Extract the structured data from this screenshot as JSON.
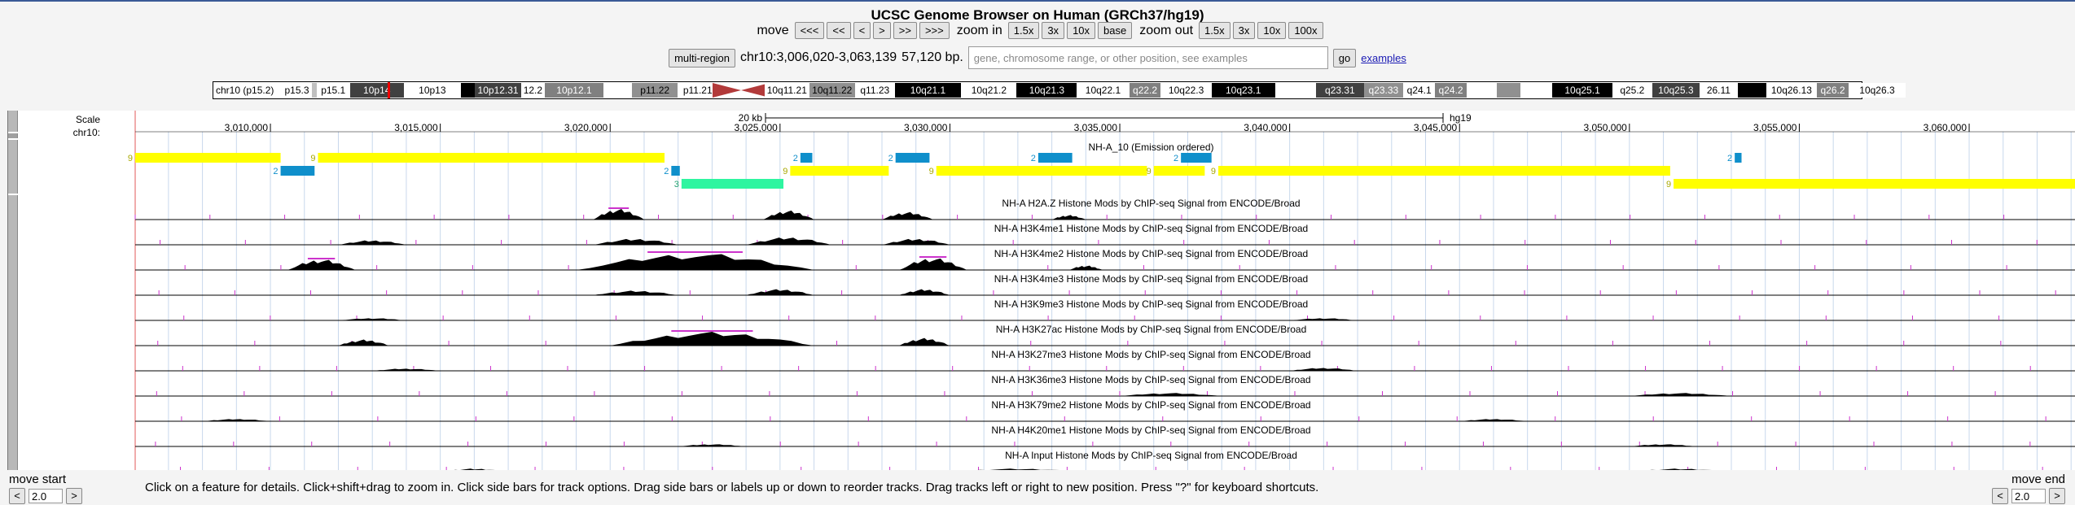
{
  "title": "UCSC Genome Browser on Human (GRCh37/hg19)",
  "nav": {
    "move_label": "move",
    "move_buttons": [
      "<<<",
      "<<",
      "<",
      ">",
      ">>",
      ">>>"
    ],
    "zoom_in_label": "zoom in",
    "zoom_in_buttons": [
      "1.5x",
      "3x",
      "10x",
      "base"
    ],
    "zoom_out_label": "zoom out",
    "zoom_out_buttons": [
      "1.5x",
      "3x",
      "10x",
      "100x"
    ]
  },
  "position": {
    "multi_region_label": "multi-region",
    "coords": "chr10:3,006,020-3,063,139",
    "size": "57,120 bp.",
    "search_placeholder": "gene, chromosome range, or other position, see examples",
    "go_label": "go",
    "examples_label": "examples"
  },
  "ideogram": {
    "chrom_label": "chr10 (p15.2)",
    "bands": [
      {
        "name": "p15.3",
        "shade": "#ffffff",
        "text": "#000"
      },
      {
        "name": "",
        "shade": "#c0c0c0",
        "text": "#000"
      },
      {
        "name": "p15.1",
        "shade": "#ffffff",
        "text": "#000"
      },
      {
        "name": "10p14",
        "shade": "#404040",
        "text": "#fff"
      },
      {
        "name": "10p13",
        "shade": "#ffffff",
        "text": "#000"
      },
      {
        "name": "",
        "shade": "#000000",
        "text": "#fff"
      },
      {
        "name": "10p12.31",
        "shade": "#404040",
        "text": "#fff"
      },
      {
        "name": "12.2",
        "shade": "#ffffff",
        "text": "#000"
      },
      {
        "name": "10p12.1",
        "shade": "#808080",
        "text": "#fff"
      },
      {
        "name": "",
        "shade": "#ffffff",
        "text": "#000"
      },
      {
        "name": "p11.22",
        "shade": "#909090",
        "text": "#000"
      },
      {
        "name": "p11.21",
        "shade": "#ffffff",
        "text": "#000"
      },
      {
        "name": "",
        "shade": "#ffffff",
        "text": "#000"
      },
      {
        "name": "10q11.21",
        "shade": "#ffffff",
        "text": "#000"
      },
      {
        "name": "10q11.22",
        "shade": "#909090",
        "text": "#000"
      },
      {
        "name": "q11.23",
        "shade": "#ffffff",
        "text": "#000"
      },
      {
        "name": "10q21.1",
        "shade": "#000000",
        "text": "#fff"
      },
      {
        "name": "10q21.2",
        "shade": "#ffffff",
        "text": "#000"
      },
      {
        "name": "10q21.3",
        "shade": "#000000",
        "text": "#fff"
      },
      {
        "name": "10q22.1",
        "shade": "#ffffff",
        "text": "#000"
      },
      {
        "name": "q22.2",
        "shade": "#808080",
        "text": "#fff"
      },
      {
        "name": "10q22.3",
        "shade": "#ffffff",
        "text": "#000"
      },
      {
        "name": "10q23.1",
        "shade": "#000000",
        "text": "#fff"
      },
      {
        "name": "",
        "shade": "#ffffff",
        "text": "#000"
      },
      {
        "name": "q23.31",
        "shade": "#404040",
        "text": "#fff"
      },
      {
        "name": "q23.33",
        "shade": "#909090",
        "text": "#fff"
      },
      {
        "name": "q24.1",
        "shade": "#ffffff",
        "text": "#000"
      },
      {
        "name": "q24.2",
        "shade": "#808080",
        "text": "#fff"
      },
      {
        "name": "",
        "shade": "#ffffff",
        "text": "#000"
      },
      {
        "name": "",
        "shade": "#909090",
        "text": "#000"
      },
      {
        "name": "",
        "shade": "#ffffff",
        "text": "#000"
      },
      {
        "name": "10q25.1",
        "shade": "#000000",
        "text": "#fff"
      },
      {
        "name": "q25.2",
        "shade": "#ffffff",
        "text": "#000"
      },
      {
        "name": "10q25.3",
        "shade": "#404040",
        "text": "#fff"
      },
      {
        "name": "26.11",
        "shade": "#ffffff",
        "text": "#000"
      },
      {
        "name": "",
        "shade": "#000000",
        "text": "#fff"
      },
      {
        "name": "10q26.13",
        "shade": "#ffffff",
        "text": "#000"
      },
      {
        "name": "q26.2",
        "shade": "#808080",
        "text": "#fff"
      },
      {
        "name": "10q26.3",
        "shade": "#ffffff",
        "text": "#000"
      }
    ]
  },
  "scale": {
    "scale_label": "Scale",
    "chrom_label": "chr10:",
    "bar_label": "20 kb",
    "assembly": "hg19",
    "ticks": [
      "3,010,000",
      "3,015,000",
      "3,020,000",
      "3,025,000",
      "3,030,000",
      "3,035,000",
      "3,040,000",
      "3,045,000",
      "3,050,000",
      "3,055,000",
      "3,060,000"
    ]
  },
  "chromhmm": {
    "title": "NH-A_10 (Emission ordered)",
    "colors": {
      "state9": "#ffff00",
      "state2": "#0f8fcb",
      "state3": "#2ef5a0"
    },
    "row1": [
      {
        "state": "9",
        "start": 3006020,
        "end": 3010300
      },
      {
        "state": "9",
        "start": 3011400,
        "end": 3021600
      },
      {
        "state": "2",
        "start": 3025600,
        "end": 3025950
      },
      {
        "state": "2",
        "start": 3028400,
        "end": 3029400
      },
      {
        "state": "2",
        "start": 3032600,
        "end": 3033600
      },
      {
        "state": "2",
        "start": 3036800,
        "end": 3037700
      },
      {
        "state": "2",
        "start": 3053100,
        "end": 3053300
      }
    ],
    "row2": [
      {
        "state": "2",
        "start": 3010300,
        "end": 3011300
      },
      {
        "state": "2",
        "start": 3021800,
        "end": 3022050
      },
      {
        "state": "9",
        "start": 3025300,
        "end": 3028200
      },
      {
        "state": "9",
        "start": 3029600,
        "end": 3035800
      },
      {
        "state": "9",
        "start": 3036000,
        "end": 3037500
      },
      {
        "state": "9",
        "start": 3037900,
        "end": 3051200
      }
    ],
    "row3": [
      {
        "state": "3",
        "start": 3022100,
        "end": 3025100
      },
      {
        "state": "9",
        "start": 3051300,
        "end": 3063139
      }
    ]
  },
  "signal_tracks": [
    {
      "label": "NH-A H2A.Z Histone Mods by ChIP-seq Signal from ENCODE/Broad"
    },
    {
      "label": "NH-A H3K4me1 Histone Mods by ChIP-seq Signal from ENCODE/Broad"
    },
    {
      "label": "NH-A H3K4me2 Histone Mods by ChIP-seq Signal from ENCODE/Broad"
    },
    {
      "label": "NH-A H3K4me3 Histone Mods by ChIP-seq Signal from ENCODE/Broad"
    },
    {
      "label": "NH-A H3K9me3 Histone Mods by ChIP-seq Signal from ENCODE/Broad"
    },
    {
      "label": "NH-A H3K27ac Histone Mods by ChIP-seq Signal from ENCODE/Broad"
    },
    {
      "label": "NH-A H3K27me3 Histone Mods by ChIP-seq Signal from ENCODE/Broad"
    },
    {
      "label": "NH-A H3K36me3 Histone Mods by ChIP-seq Signal from ENCODE/Broad"
    },
    {
      "label": "NH-A H3K79me2 Histone Mods by ChIP-seq Signal from ENCODE/Broad"
    },
    {
      "label": "NH-A H4K20me1 Histone Mods by ChIP-seq Signal from ENCODE/Broad"
    },
    {
      "label": "NH-A Input Histone Mods by ChIP-seq Signal from ENCODE/Broad"
    }
  ],
  "footer": {
    "help_text": "Click on a feature for details. Click+shift+drag to zoom in. Click side bars for track options. Drag side bars or labels up or down to reorder tracks. Drag tracks left or right to new position. Press \"?\" for keyboard shortcuts.",
    "move_start_label": "move start",
    "move_end_label": "move end",
    "move_start_value": "2.0",
    "move_end_value": "2.0"
  }
}
